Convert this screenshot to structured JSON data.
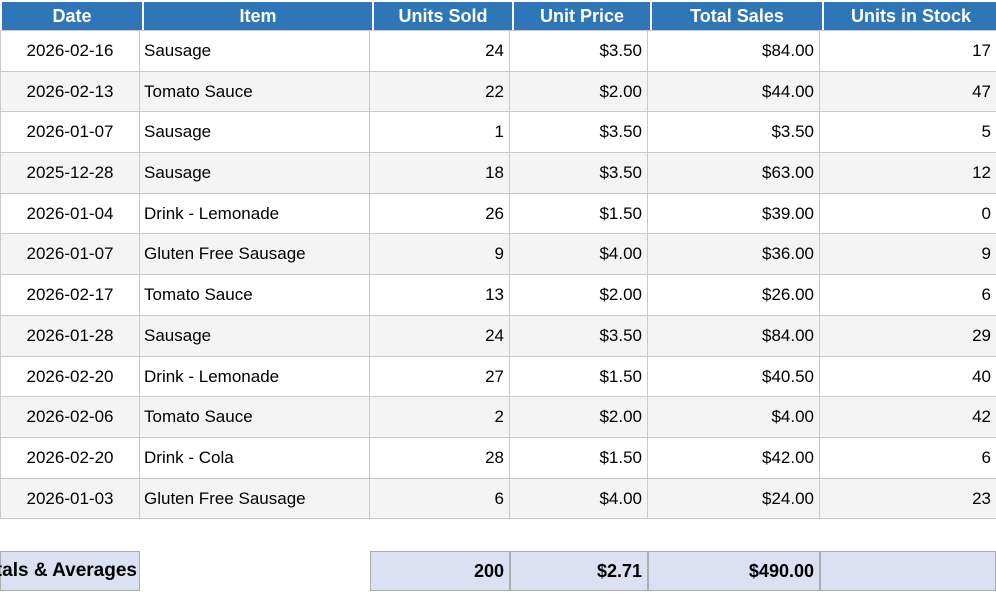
{
  "colors": {
    "header_bg": "#2E76B6",
    "header_text": "#FFFFFF",
    "grid_border": "#C9C9C9",
    "stripe_bg": "#F4F4F4",
    "footer_bg": "#DBE0F2",
    "footer_border": "#ACACAC"
  },
  "table": {
    "columns": [
      {
        "label": "Date"
      },
      {
        "label": "Item"
      },
      {
        "label": "Units Sold"
      },
      {
        "label": "Unit Price"
      },
      {
        "label": "Total Sales"
      },
      {
        "label": "Units in Stock"
      }
    ],
    "rows": [
      {
        "date": "2026-02-16",
        "item": "Sausage",
        "units_sold": "24",
        "unit_price": "$3.50",
        "total_sales": "$84.00",
        "units_in_stock": "17"
      },
      {
        "date": "2026-02-13",
        "item": "Tomato Sauce",
        "units_sold": "22",
        "unit_price": "$2.00",
        "total_sales": "$44.00",
        "units_in_stock": "47"
      },
      {
        "date": "2026-01-07",
        "item": "Sausage",
        "units_sold": "1",
        "unit_price": "$3.50",
        "total_sales": "$3.50",
        "units_in_stock": "5"
      },
      {
        "date": "2025-12-28",
        "item": "Sausage",
        "units_sold": "18",
        "unit_price": "$3.50",
        "total_sales": "$63.00",
        "units_in_stock": "12"
      },
      {
        "date": "2026-01-04",
        "item": "Drink - Lemonade",
        "units_sold": "26",
        "unit_price": "$1.50",
        "total_sales": "$39.00",
        "units_in_stock": "0"
      },
      {
        "date": "2026-01-07",
        "item": "Gluten Free Sausage",
        "units_sold": "9",
        "unit_price": "$4.00",
        "total_sales": "$36.00",
        "units_in_stock": "9"
      },
      {
        "date": "2026-02-17",
        "item": "Tomato Sauce",
        "units_sold": "13",
        "unit_price": "$2.00",
        "total_sales": "$26.00",
        "units_in_stock": "6"
      },
      {
        "date": "2026-01-28",
        "item": "Sausage",
        "units_sold": "24",
        "unit_price": "$3.50",
        "total_sales": "$84.00",
        "units_in_stock": "29"
      },
      {
        "date": "2026-02-20",
        "item": "Drink - Lemonade",
        "units_sold": "27",
        "unit_price": "$1.50",
        "total_sales": "$40.50",
        "units_in_stock": "40"
      },
      {
        "date": "2026-02-06",
        "item": "Tomato Sauce",
        "units_sold": "2",
        "unit_price": "$2.00",
        "total_sales": "$4.00",
        "units_in_stock": "42"
      },
      {
        "date": "2026-02-20",
        "item": "Drink - Cola",
        "units_sold": "28",
        "unit_price": "$1.50",
        "total_sales": "$42.00",
        "units_in_stock": "6"
      },
      {
        "date": "2026-01-03",
        "item": "Gluten Free Sausage",
        "units_sold": "6",
        "unit_price": "$4.00",
        "total_sales": "$24.00",
        "units_in_stock": "23"
      }
    ],
    "footer": {
      "label": "Totals & Averages",
      "units_sold": "200",
      "unit_price": "$2.71",
      "total_sales": "$490.00",
      "units_in_stock": ""
    }
  }
}
